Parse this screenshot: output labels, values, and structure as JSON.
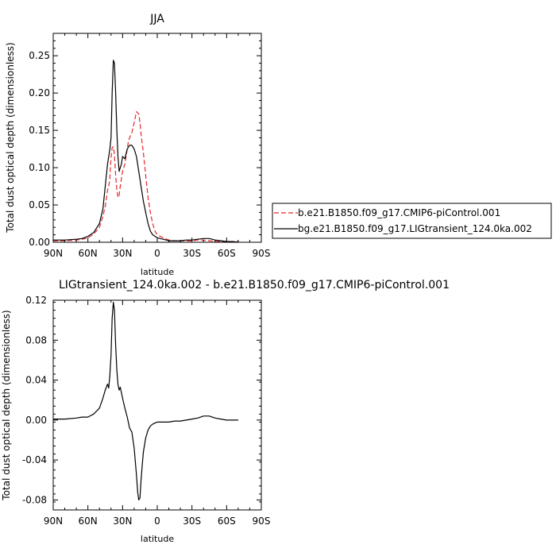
{
  "chart_data": [
    {
      "type": "line",
      "title": "JJA",
      "xlabel": "latitude",
      "ylabel": "Total dust optical depth (dimensionless)",
      "xlim": [
        90,
        -90
      ],
      "ylim": [
        0,
        0.28
      ],
      "x_ticks": [
        90,
        60,
        30,
        0,
        -30,
        -60,
        -90
      ],
      "x_tick_labels": [
        "90N",
        "60N",
        "30N",
        "0",
        "30S",
        "60S",
        "90S"
      ],
      "y_ticks": [
        0,
        0.05,
        0.1,
        0.15,
        0.2,
        0.25
      ],
      "y_tick_labels": [
        "0.00",
        "0.05",
        "0.10",
        "0.15",
        "0.20",
        "0.25"
      ],
      "grid": false,
      "legend_position": "right",
      "series": [
        {
          "name": "b.e21.B1850.f09_g17.CMIP6-piControl.001",
          "color": "#e8262c",
          "dash": "dashed",
          "x": [
            90,
            80,
            70,
            65,
            60,
            55,
            50,
            47,
            45,
            43,
            42,
            41,
            40,
            39,
            38,
            37,
            36,
            35,
            34,
            33,
            32,
            30,
            28,
            26,
            25,
            24,
            22,
            20,
            18,
            16,
            15,
            14,
            12,
            10,
            8,
            6,
            4,
            2,
            0,
            -5,
            -10,
            -15,
            -20,
            -25,
            -30,
            -35,
            -40,
            -45,
            -50,
            -55,
            -60,
            -65,
            -70
          ],
          "y": [
            0.002,
            0.002,
            0.003,
            0.004,
            0.006,
            0.011,
            0.02,
            0.035,
            0.048,
            0.07,
            0.075,
            0.085,
            0.113,
            0.127,
            0.128,
            0.117,
            0.09,
            0.07,
            0.06,
            0.063,
            0.075,
            0.095,
            0.105,
            0.125,
            0.135,
            0.14,
            0.147,
            0.16,
            0.175,
            0.172,
            0.16,
            0.145,
            0.12,
            0.09,
            0.06,
            0.04,
            0.025,
            0.015,
            0.01,
            0.006,
            0.003,
            0.002,
            0.002,
            0.002,
            0.002,
            0.003,
            0.003,
            0.002,
            0.001,
            0.001,
            0.001,
            0.001,
            0.001
          ]
        },
        {
          "name": "bg.e21.B1850.f09_g17.LIGtransient_124.0ka.002",
          "color": "#000000",
          "dash": "solid",
          "x": [
            90,
            80,
            70,
            65,
            60,
            55,
            50,
            47,
            45,
            43,
            42,
            41,
            40,
            39,
            38,
            37,
            36,
            35,
            34,
            33,
            32,
            31,
            30,
            28,
            26,
            24,
            22,
            20,
            18,
            16,
            14,
            12,
            10,
            8,
            6,
            4,
            2,
            0,
            -5,
            -10,
            -15,
            -20,
            -25,
            -30,
            -35,
            -40,
            -45,
            -50,
            -55,
            -60,
            -65,
            -70
          ],
          "y": [
            0.003,
            0.003,
            0.004,
            0.005,
            0.008,
            0.013,
            0.025,
            0.045,
            0.075,
            0.105,
            0.115,
            0.125,
            0.14,
            0.2,
            0.244,
            0.24,
            0.2,
            0.15,
            0.115,
            0.095,
            0.1,
            0.105,
            0.115,
            0.112,
            0.125,
            0.13,
            0.13,
            0.125,
            0.115,
            0.095,
            0.075,
            0.055,
            0.04,
            0.025,
            0.015,
            0.01,
            0.008,
            0.006,
            0.004,
            0.002,
            0.002,
            0.002,
            0.003,
            0.003,
            0.004,
            0.005,
            0.005,
            0.003,
            0.002,
            0.001,
            0.001,
            0.0
          ]
        }
      ]
    },
    {
      "type": "line",
      "title": "LIGtransient_124.0ka.002 - b.e21.B1850.f09_g17.CMIP6-piControl.001",
      "xlabel": "latitude",
      "ylabel": "Total dust optical depth (dimensionless)",
      "xlim": [
        90,
        -90
      ],
      "ylim": [
        -0.09,
        0.12
      ],
      "x_ticks": [
        90,
        60,
        30,
        0,
        -30,
        -60,
        -90
      ],
      "x_tick_labels": [
        "90N",
        "60N",
        "30N",
        "0",
        "30S",
        "60S",
        "90S"
      ],
      "y_ticks": [
        -0.08,
        -0.04,
        0,
        0.04,
        0.08,
        0.12
      ],
      "y_tick_labels": [
        "-0.08",
        "-0.04",
        "0.00",
        "0.04",
        "0.08",
        "0.12"
      ],
      "grid": false,
      "series": [
        {
          "color": "#000000",
          "dash": "solid",
          "x": [
            90,
            80,
            70,
            65,
            62,
            60,
            55,
            50,
            47,
            45,
            43,
            42,
            41,
            40,
            39,
            38,
            37,
            36,
            35,
            34,
            33,
            32,
            30,
            28,
            26,
            24,
            22,
            20,
            18,
            17,
            16,
            15,
            14,
            13,
            12,
            10,
            8,
            6,
            4,
            2,
            0,
            -5,
            -10,
            -15,
            -20,
            -25,
            -30,
            -35,
            -40,
            -45,
            -50,
            -55,
            -60,
            -65,
            -70
          ],
          "y": [
            0.001,
            0.001,
            0.002,
            0.003,
            0.003,
            0.003,
            0.006,
            0.012,
            0.022,
            0.03,
            0.036,
            0.032,
            0.045,
            0.065,
            0.102,
            0.118,
            0.11,
            0.075,
            0.05,
            0.036,
            0.03,
            0.033,
            0.022,
            0.012,
            0.003,
            -0.008,
            -0.012,
            -0.028,
            -0.055,
            -0.072,
            -0.08,
            -0.078,
            -0.06,
            -0.045,
            -0.032,
            -0.018,
            -0.01,
            -0.006,
            -0.004,
            -0.003,
            -0.002,
            -0.002,
            -0.002,
            -0.001,
            -0.001,
            0.0,
            0.001,
            0.002,
            0.004,
            0.004,
            0.002,
            0.001,
            0.0,
            0.0,
            0.0
          ]
        }
      ]
    }
  ]
}
